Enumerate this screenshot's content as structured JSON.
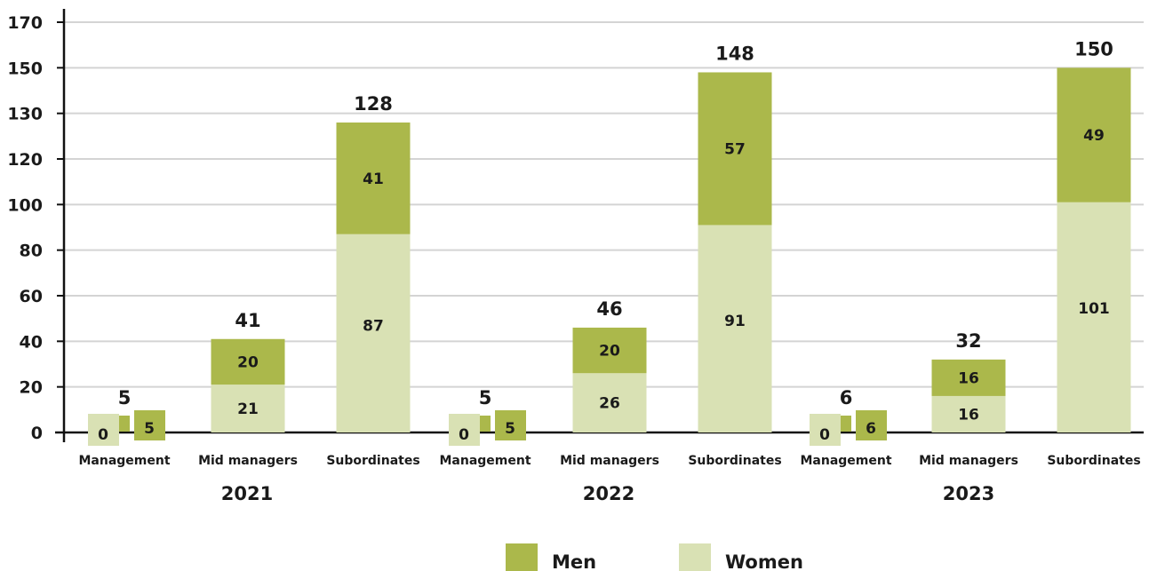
{
  "chart_data": {
    "type": "bar",
    "stacked": true,
    "y_ticks": [
      "0",
      "20",
      "40",
      "60",
      "80",
      "100",
      "120",
      "130",
      "150",
      "170"
    ],
    "grid": true,
    "groups": [
      {
        "year": "2021",
        "categories": [
          {
            "name": "Management",
            "women": 0,
            "men": 5,
            "total": 5
          },
          {
            "name": "Mid managers",
            "women": 21,
            "men": 20,
            "total": 41
          },
          {
            "name": "Subordinates",
            "women": 87,
            "men": 41,
            "total": 128
          }
        ]
      },
      {
        "year": "2022",
        "categories": [
          {
            "name": "Management",
            "women": 0,
            "men": 5,
            "total": 5
          },
          {
            "name": "Mid managers",
            "women": 26,
            "men": 20,
            "total": 46
          },
          {
            "name": "Subordinates",
            "women": 91,
            "men": 57,
            "total": 148
          }
        ]
      },
      {
        "year": "2023",
        "categories": [
          {
            "name": "Management",
            "women": 0,
            "men": 6,
            "total": 6
          },
          {
            "name": "Mid managers",
            "women": 16,
            "men": 16,
            "total": 32
          },
          {
            "name": "Subordinates",
            "women": 101,
            "men": 49,
            "total": 150
          }
        ]
      }
    ],
    "series": [
      {
        "key": "men",
        "name": "Men",
        "color": "#abb84b"
      },
      {
        "key": "women",
        "name": "Women",
        "color": "#d9e1b4"
      }
    ],
    "legend_position": "bottom-center"
  }
}
